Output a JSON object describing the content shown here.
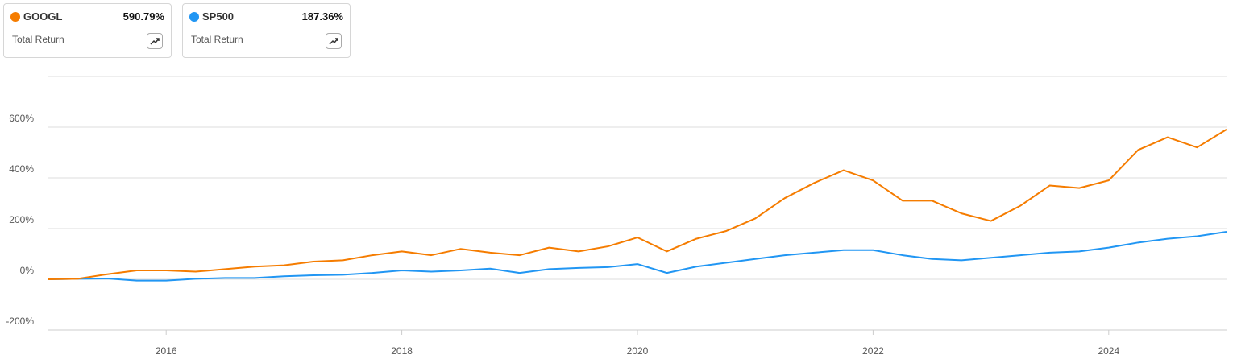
{
  "chart_data": {
    "type": "line",
    "x": [
      2015,
      2015.25,
      2015.5,
      2015.75,
      2016,
      2016.25,
      2016.5,
      2016.75,
      2017,
      2017.25,
      2017.5,
      2017.75,
      2018,
      2018.25,
      2018.5,
      2018.75,
      2019,
      2019.25,
      2019.5,
      2019.75,
      2020,
      2020.25,
      2020.5,
      2020.75,
      2021,
      2021.25,
      2021.5,
      2021.75,
      2022,
      2022.25,
      2022.5,
      2022.75,
      2023,
      2023.25,
      2023.5,
      2023.75,
      2024,
      2024.25,
      2024.5,
      2024.75,
      2025
    ],
    "series": [
      {
        "name": "GOOGL",
        "color": "#f57c00",
        "caption": "Total Return",
        "summary": {
          "value": 590.79,
          "label": "590.79%"
        },
        "values": [
          0,
          2,
          20,
          35,
          35,
          30,
          40,
          50,
          55,
          70,
          75,
          95,
          110,
          95,
          120,
          105,
          95,
          125,
          110,
          130,
          165,
          110,
          160,
          190,
          240,
          320,
          380,
          430,
          390,
          310,
          310,
          260,
          230,
          290,
          370,
          360,
          390,
          510,
          560,
          520,
          590.79
        ]
      },
      {
        "name": "SP500",
        "color": "#2196f3",
        "caption": "Total Return",
        "summary": {
          "value": 187.36,
          "label": "187.36%"
        },
        "values": [
          0,
          2,
          3,
          -5,
          -5,
          2,
          5,
          5,
          12,
          16,
          18,
          25,
          35,
          30,
          35,
          42,
          25,
          40,
          45,
          48,
          60,
          25,
          50,
          65,
          80,
          95,
          105,
          115,
          115,
          95,
          80,
          75,
          85,
          95,
          105,
          110,
          125,
          145,
          160,
          170,
          187.36
        ]
      }
    ],
    "xlim": [
      2015,
      2025
    ],
    "xticks": [
      2016,
      2018,
      2020,
      2022,
      2024
    ],
    "ylim": [
      -200,
      800
    ],
    "yticks": [
      {
        "value": -200,
        "label": "-200%"
      },
      {
        "value": 0,
        "label": "0%"
      },
      {
        "value": 200,
        "label": "200%"
      },
      {
        "value": 400,
        "label": "400%"
      },
      {
        "value": 600,
        "label": "600%"
      }
    ],
    "grid": true
  }
}
